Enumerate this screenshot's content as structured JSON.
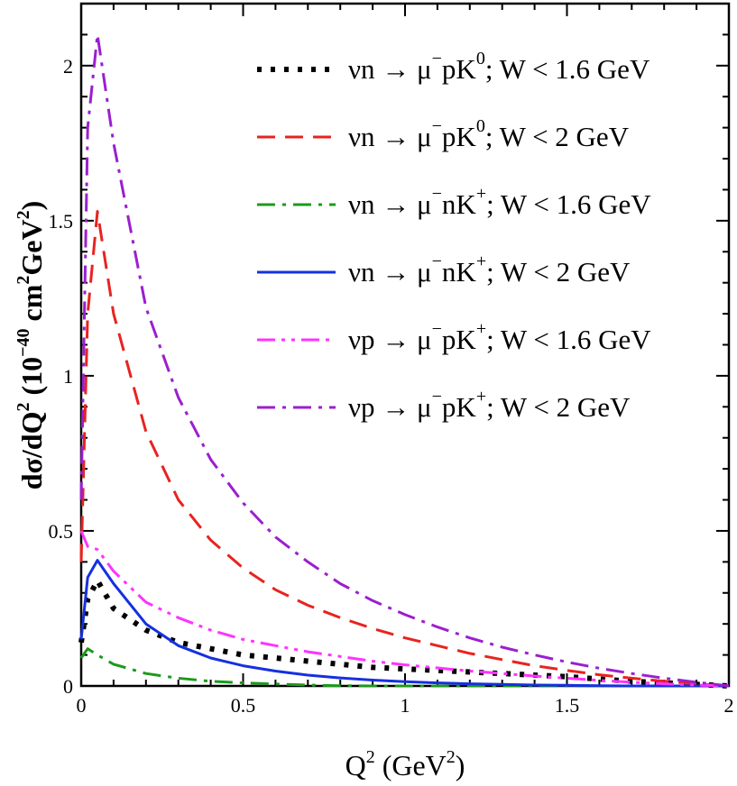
{
  "chart_data": {
    "type": "line",
    "xlabel": {
      "base": "Q",
      "sup": "2",
      "unit_open": " (GeV",
      "unit_sup": "2",
      "unit_close": ")"
    },
    "ylabel": {
      "main": "dσ/dQ",
      "sup1": "2",
      "mid": " (10",
      "sup2": "−40",
      "mid2": " cm",
      "sup3": "2",
      "mid3": "GeV",
      "sup4": "2",
      "close": ")"
    },
    "xlim": [
      0,
      2
    ],
    "ylim": [
      0,
      2.2
    ],
    "xticks": [
      0,
      0.5,
      1,
      1.5,
      2
    ],
    "xtick_labels": [
      "0",
      "0.5",
      "1",
      "1.5",
      "2"
    ],
    "yticks": [
      0,
      0.5,
      1,
      1.5,
      2
    ],
    "ytick_labels": [
      "0",
      "0.5",
      "1",
      "1.5",
      "2"
    ],
    "x": [
      0.0,
      0.02,
      0.05,
      0.1,
      0.2,
      0.3,
      0.4,
      0.5,
      0.6,
      0.7,
      0.8,
      0.9,
      1.0,
      1.1,
      1.2,
      1.3,
      1.4,
      1.5,
      1.6,
      1.7,
      1.8,
      1.9,
      2.0
    ],
    "series": [
      {
        "name": "νn → μ⁻pK⁰; W < 1.6 GeV",
        "legend": {
          "a": "νn → μ",
          "s1": "−",
          "b": "pK",
          "s2": "0",
          "c": "; W < 1.6 GeV"
        },
        "color": "#000000",
        "style": "dotted",
        "values": [
          0.14,
          0.28,
          0.34,
          0.25,
          0.18,
          0.14,
          0.12,
          0.1,
          0.09,
          0.08,
          0.07,
          0.06,
          0.055,
          0.05,
          0.045,
          0.04,
          0.035,
          0.03,
          0.022,
          0.015,
          0.01,
          0.005,
          0.0
        ]
      },
      {
        "name": "νn → μ⁻pK⁰; W < 2 GeV",
        "legend": {
          "a": "νn → μ",
          "s1": "−",
          "b": "pK",
          "s2": "0",
          "c": "; W < 2 GeV"
        },
        "color": "#e8231f",
        "style": "dashed",
        "values": [
          0.4,
          1.2,
          1.53,
          1.2,
          0.82,
          0.6,
          0.47,
          0.38,
          0.31,
          0.26,
          0.22,
          0.185,
          0.155,
          0.13,
          0.105,
          0.085,
          0.065,
          0.05,
          0.036,
          0.025,
          0.015,
          0.006,
          0.0
        ]
      },
      {
        "name": "νn → μ⁻nK⁺; W < 1.6 GeV",
        "legend": {
          "a": "νn → μ",
          "s1": "−",
          "b": "nK",
          "s2": "+",
          "c": "; W < 1.6 GeV"
        },
        "color": "#1c9a1c",
        "style": "dashdot",
        "values": [
          0.09,
          0.12,
          0.1,
          0.07,
          0.04,
          0.025,
          0.015,
          0.01,
          0.006,
          0.003,
          0.001,
          0.0,
          0.0,
          0.0,
          0.0,
          0.0,
          0.0,
          0.0,
          0.0,
          0.0,
          0.0,
          0.0,
          0.0
        ]
      },
      {
        "name": "νn → μ⁻nK⁺; W < 2 GeV",
        "legend": {
          "a": "νn → μ",
          "s1": "−",
          "b": "nK",
          "s2": "+",
          "c": "; W < 2 GeV"
        },
        "color": "#1530e0",
        "style": "solid",
        "values": [
          0.15,
          0.35,
          0.405,
          0.33,
          0.2,
          0.13,
          0.09,
          0.065,
          0.048,
          0.035,
          0.026,
          0.019,
          0.014,
          0.01,
          0.007,
          0.005,
          0.003,
          0.002,
          0.001,
          0.0,
          0.0,
          0.0,
          0.0
        ]
      },
      {
        "name": "νp → μ⁻pK⁺; W < 1.6 GeV",
        "legend": {
          "a": "νp → μ",
          "s1": "−",
          "b": "pK",
          "s2": "+",
          "c": "; W < 1.6 GeV"
        },
        "color": "#ff33ff",
        "style": "dashdotdot",
        "values": [
          0.5,
          0.45,
          0.44,
          0.37,
          0.27,
          0.22,
          0.18,
          0.15,
          0.13,
          0.11,
          0.095,
          0.08,
          0.068,
          0.058,
          0.048,
          0.04,
          0.032,
          0.025,
          0.018,
          0.012,
          0.007,
          0.003,
          0.0
        ]
      },
      {
        "name": "νp → μ⁻pK⁺; W < 2 GeV",
        "legend": {
          "a": "νp → μ",
          "s1": "−",
          "b": "pK",
          "s2": "+",
          "c": "; W < 2 GeV"
        },
        "color": "#9b1fcf",
        "style": "dashdot",
        "values": [
          0.6,
          1.8,
          2.1,
          1.75,
          1.22,
          0.93,
          0.73,
          0.59,
          0.48,
          0.4,
          0.33,
          0.275,
          0.23,
          0.19,
          0.155,
          0.125,
          0.1,
          0.077,
          0.057,
          0.04,
          0.025,
          0.012,
          0.0
        ]
      }
    ],
    "grid": false,
    "legend_position": "top-right"
  }
}
